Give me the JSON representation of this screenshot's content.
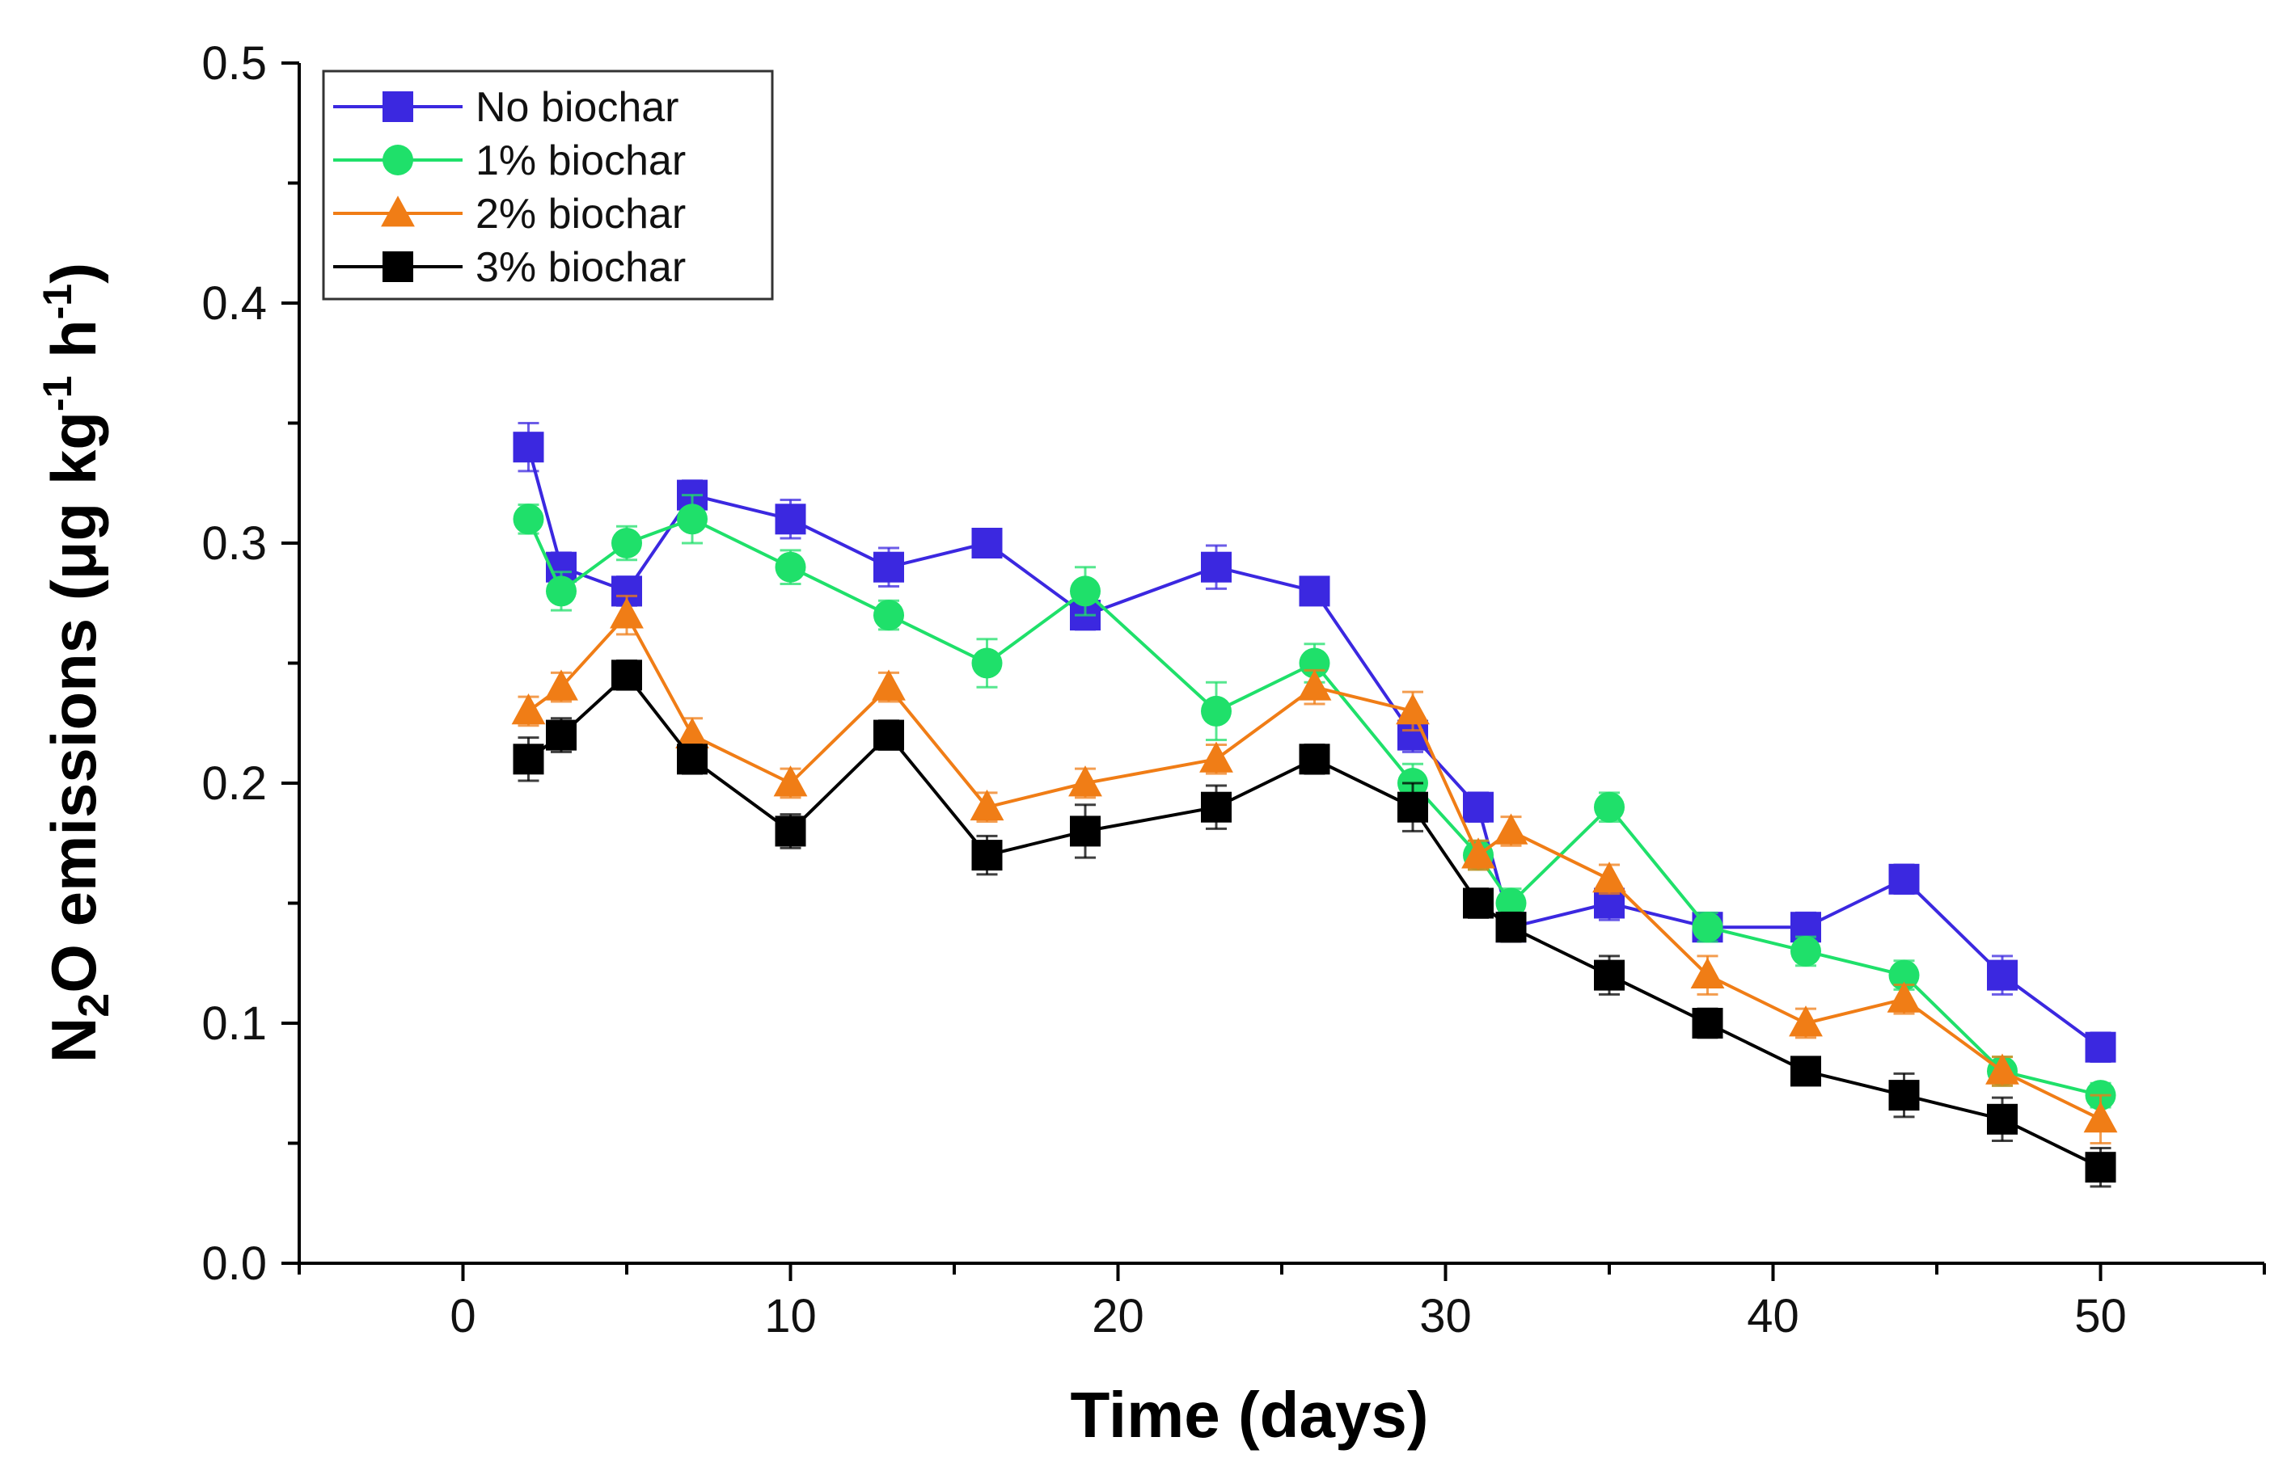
{
  "chart_data": {
    "type": "line",
    "title": "",
    "xlabel": "Time (days)",
    "ylabel": {
      "prefix": "N",
      "sub": "2",
      "mid": "O emissions (μg kg",
      "sup1": "-1",
      "mid2": " h",
      "sup2": "-1",
      "suffix": ")"
    },
    "xlim": [
      -5,
      55
    ],
    "ylim": [
      0,
      0.5
    ],
    "xticks": [
      0,
      10,
      20,
      30,
      40,
      50
    ],
    "xtick_labels": [
      "0",
      "10",
      "20",
      "30",
      "40",
      "50"
    ],
    "yticks": [
      0,
      0.1,
      0.2,
      0.3,
      0.4,
      0.5
    ],
    "ytick_labels": [
      "0.0",
      "0.1",
      "0.2",
      "0.3",
      "0.4",
      "0.5"
    ],
    "grid": false,
    "legend_position": "top-left",
    "x": [
      2,
      3,
      5,
      7,
      10,
      13,
      16,
      19,
      23,
      26,
      29,
      31,
      32,
      35,
      38,
      41,
      44,
      47,
      50
    ],
    "series": [
      {
        "name": "No biochar",
        "color": "#3b28e0",
        "marker": "square",
        "values": [
          0.34,
          0.29,
          0.28,
          0.32,
          0.31,
          0.29,
          0.3,
          0.27,
          0.29,
          0.28,
          0.22,
          0.19,
          0.14,
          0.15,
          0.14,
          0.14,
          0.16,
          0.12,
          0.09
        ],
        "errors": [
          0.01,
          0.006,
          0.006,
          0.006,
          0.008,
          0.008,
          0.005,
          0.006,
          0.009,
          0.005,
          0.007,
          0.006,
          0.005,
          0.007,
          0.005,
          0.006,
          0.006,
          0.008,
          0.006
        ]
      },
      {
        "name": "1% biochar",
        "color": "#1fe06a",
        "marker": "circle",
        "values": [
          0.31,
          0.28,
          0.3,
          0.31,
          0.29,
          0.27,
          0.25,
          0.28,
          0.23,
          0.25,
          0.2,
          0.17,
          0.15,
          0.19,
          0.14,
          0.13,
          0.12,
          0.08,
          0.07
        ],
        "errors": [
          0.006,
          0.008,
          0.007,
          0.01,
          0.007,
          0.006,
          0.01,
          0.01,
          0.012,
          0.008,
          0.008,
          0.006,
          0.006,
          0.006,
          0.006,
          0.006,
          0.006,
          0.006,
          0.005
        ]
      },
      {
        "name": "2% biochar",
        "color": "#f07d16",
        "marker": "triangle",
        "values": [
          0.23,
          0.24,
          0.27,
          0.22,
          0.2,
          0.24,
          0.19,
          0.2,
          0.21,
          0.24,
          0.23,
          0.17,
          0.18,
          0.16,
          0.12,
          0.1,
          0.11,
          0.08,
          0.06
        ],
        "errors": [
          0.006,
          0.006,
          0.008,
          0.007,
          0.006,
          0.006,
          0.006,
          0.006,
          0.006,
          0.007,
          0.008,
          0.006,
          0.006,
          0.006,
          0.008,
          0.006,
          0.006,
          0.006,
          0.01
        ]
      },
      {
        "name": "3% biochar",
        "color": "#000000",
        "marker": "square",
        "values": [
          0.21,
          0.22,
          0.245,
          0.21,
          0.18,
          0.22,
          0.17,
          0.18,
          0.19,
          0.21,
          0.19,
          0.15,
          0.14,
          0.12,
          0.1,
          0.08,
          0.07,
          0.06,
          0.04
        ],
        "errors": [
          0.009,
          0.007,
          0.006,
          0.006,
          0.007,
          0.006,
          0.008,
          0.011,
          0.009,
          0.006,
          0.01,
          0.006,
          0.006,
          0.008,
          0.006,
          0.005,
          0.009,
          0.009,
          0.008
        ]
      }
    ]
  }
}
